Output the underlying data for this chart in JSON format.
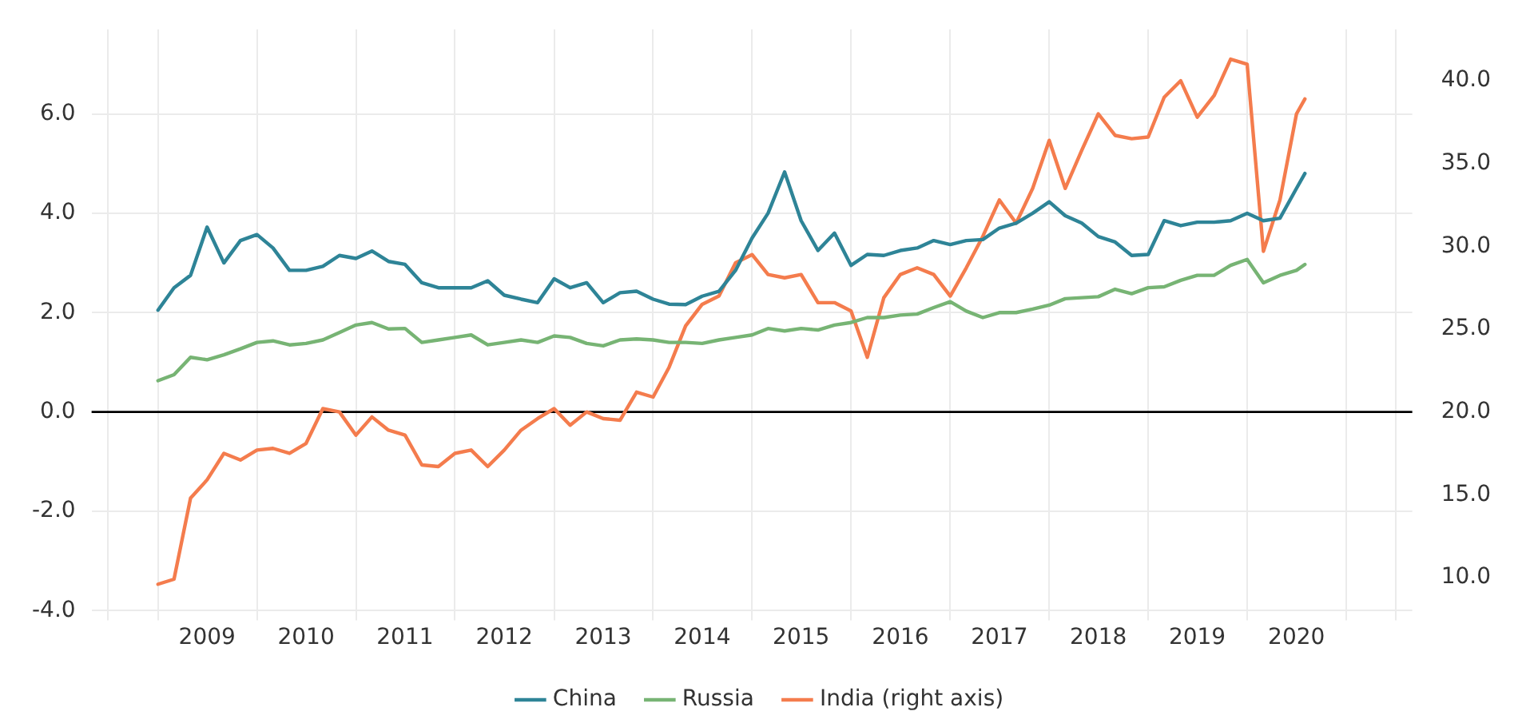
{
  "chart_data": {
    "type": "line",
    "x": [
      "2009-01",
      "2009-03",
      "2009-05",
      "2009-07",
      "2009-09",
      "2009-11",
      "2010-01",
      "2010-03",
      "2010-05",
      "2010-07",
      "2010-09",
      "2010-11",
      "2011-01",
      "2011-03",
      "2011-05",
      "2011-07",
      "2011-09",
      "2011-11",
      "2012-01",
      "2012-03",
      "2012-05",
      "2012-07",
      "2012-09",
      "2012-11",
      "2013-01",
      "2013-03",
      "2013-05",
      "2013-07",
      "2013-09",
      "2013-11",
      "2014-01",
      "2014-03",
      "2014-05",
      "2014-07",
      "2014-09",
      "2014-11",
      "2015-01",
      "2015-03",
      "2015-05",
      "2015-07",
      "2015-09",
      "2015-11",
      "2016-01",
      "2016-03",
      "2016-05",
      "2016-07",
      "2016-09",
      "2016-11",
      "2017-01",
      "2017-03",
      "2017-05",
      "2017-07",
      "2017-09",
      "2017-11",
      "2018-01",
      "2018-03",
      "2018-05",
      "2018-07",
      "2018-09",
      "2018-11",
      "2019-01",
      "2019-03",
      "2019-05",
      "2019-07",
      "2019-09",
      "2019-11",
      "2020-01",
      "2020-03",
      "2020-05",
      "2020-07",
      "2020-08"
    ],
    "series": [
      {
        "name": "China",
        "color": "#2e8497",
        "values": [
          2.05,
          2.5,
          2.75,
          3.72,
          3.0,
          3.45,
          3.57,
          3.3,
          2.85,
          2.85,
          2.93,
          3.15,
          3.09,
          3.24,
          3.03,
          2.97,
          2.6,
          2.5,
          2.5,
          2.5,
          2.64,
          2.35,
          2.27,
          2.2,
          2.68,
          2.5,
          2.6,
          2.2,
          2.4,
          2.43,
          2.27,
          2.17,
          2.16,
          2.33,
          2.43,
          2.85,
          3.5,
          4.0,
          4.83,
          3.85,
          3.25,
          3.6,
          2.95,
          3.17,
          3.15,
          3.25,
          3.3,
          3.45,
          3.37,
          3.45,
          3.47,
          3.7,
          3.8,
          4.0,
          4.23,
          3.95,
          3.8,
          3.53,
          3.42,
          3.15,
          3.17,
          3.85,
          3.75,
          3.82,
          3.82,
          3.85,
          4.0,
          3.85,
          3.9,
          4.5,
          4.8
        ]
      },
      {
        "name": "Russia",
        "color": "#77b474",
        "values": [
          0.63,
          0.75,
          1.1,
          1.05,
          1.15,
          1.27,
          1.4,
          1.43,
          1.35,
          1.38,
          1.45,
          1.6,
          1.75,
          1.8,
          1.67,
          1.68,
          1.4,
          1.45,
          1.5,
          1.55,
          1.35,
          1.4,
          1.45,
          1.4,
          1.53,
          1.5,
          1.38,
          1.33,
          1.45,
          1.47,
          1.45,
          1.4,
          1.4,
          1.38,
          1.45,
          1.5,
          1.55,
          1.68,
          1.63,
          1.68,
          1.65,
          1.75,
          1.8,
          1.9,
          1.9,
          1.95,
          1.97,
          2.1,
          2.22,
          2.03,
          1.9,
          2.0,
          2.0,
          2.07,
          2.15,
          2.28,
          2.3,
          2.32,
          2.47,
          2.38,
          2.5,
          2.52,
          2.65,
          2.75,
          2.75,
          2.95,
          3.07,
          2.6,
          2.75,
          2.85,
          2.97
        ]
      },
      {
        "name": "India (right axis)",
        "color": "#f47c4d",
        "axis": "y2",
        "values": [
          9.6,
          9.9,
          14.8,
          15.9,
          17.5,
          17.1,
          17.7,
          17.8,
          17.5,
          18.1,
          20.2,
          20.0,
          18.6,
          19.7,
          18.9,
          18.6,
          16.8,
          16.7,
          17.5,
          17.7,
          16.7,
          17.7,
          18.9,
          19.6,
          20.2,
          19.2,
          20.0,
          19.6,
          19.5,
          21.2,
          20.9,
          22.7,
          25.2,
          26.5,
          27.0,
          29.0,
          29.5,
          28.3,
          28.1,
          28.3,
          26.6,
          26.6,
          26.1,
          23.3,
          26.9,
          28.3,
          28.7,
          28.3,
          27.0,
          28.7,
          30.6,
          32.8,
          31.4,
          33.5,
          36.4,
          33.5,
          35.8,
          38.0,
          36.7,
          36.5,
          36.6,
          39.0,
          40.0,
          37.8,
          39.1,
          41.3,
          41.0,
          29.7,
          32.8,
          38.0,
          38.9
        ]
      }
    ],
    "xlim": [
      "2008-05",
      "2021-09"
    ],
    "xticks": [
      {
        "value": "2008-07",
        "label": null
      },
      {
        "value": "2009-01",
        "label": null
      },
      {
        "value": "2009-07",
        "label": "2009"
      },
      {
        "value": "2010-01",
        "label": null
      },
      {
        "value": "2010-07",
        "label": "2010"
      },
      {
        "value": "2011-01",
        "label": null
      },
      {
        "value": "2011-07",
        "label": "2011"
      },
      {
        "value": "2012-01",
        "label": null
      },
      {
        "value": "2012-07",
        "label": "2012"
      },
      {
        "value": "2013-01",
        "label": null
      },
      {
        "value": "2013-07",
        "label": "2013"
      },
      {
        "value": "2014-01",
        "label": null
      },
      {
        "value": "2014-07",
        "label": "2014"
      },
      {
        "value": "2015-01",
        "label": null
      },
      {
        "value": "2015-07",
        "label": "2015"
      },
      {
        "value": "2016-01",
        "label": null
      },
      {
        "value": "2016-07",
        "label": "2016"
      },
      {
        "value": "2017-01",
        "label": null
      },
      {
        "value": "2017-07",
        "label": "2017"
      },
      {
        "value": "2018-01",
        "label": null
      },
      {
        "value": "2018-07",
        "label": "2018"
      },
      {
        "value": "2019-01",
        "label": null
      },
      {
        "value": "2019-07",
        "label": "2019"
      },
      {
        "value": "2020-01",
        "label": null
      },
      {
        "value": "2020-07",
        "label": "2020"
      },
      {
        "value": "2021-01",
        "label": null
      },
      {
        "value": "2021-07",
        "label": null
      }
    ],
    "ylim": [
      -4,
      7.7
    ],
    "yticks": [
      {
        "value": -4,
        "label": "-4.0"
      },
      {
        "value": -2,
        "label": "-2.0"
      },
      {
        "value": 0,
        "label": "0.0"
      },
      {
        "value": 2,
        "label": "2.0"
      },
      {
        "value": 4,
        "label": "4.0"
      },
      {
        "value": 6,
        "label": "6.0"
      }
    ],
    "y2lim": [
      8,
      43.1
    ],
    "y2ticks": [
      {
        "value": 10,
        "label": "10.0"
      },
      {
        "value": 15,
        "label": "15.0"
      },
      {
        "value": 20,
        "label": "20.0"
      },
      {
        "value": 25,
        "label": "25.0"
      },
      {
        "value": 30,
        "label": "30.0"
      },
      {
        "value": 35,
        "label": "35.0"
      },
      {
        "value": 40,
        "label": "40.0"
      }
    ],
    "ref_lines": [
      {
        "axis": "y",
        "value": 0,
        "color": "#000000"
      }
    ],
    "grid": true,
    "legend": "bottom",
    "marker": "none",
    "line_style": "solid"
  }
}
